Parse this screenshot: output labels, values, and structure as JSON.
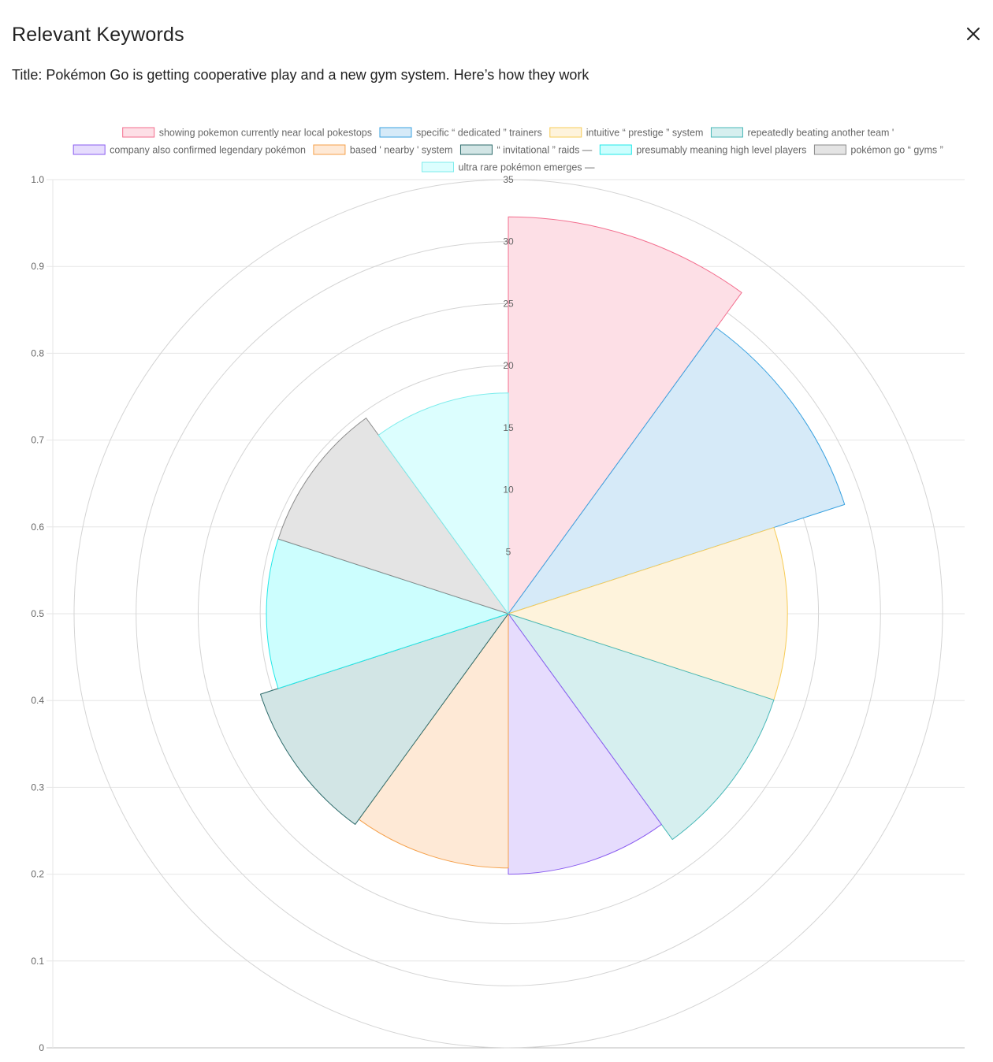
{
  "dialog": {
    "heading": "Relevant Keywords",
    "subtitle_prefix": "Title: ",
    "article_title": "Pokémon Go is getting cooperative play and a new gym system. Here’s how they work"
  },
  "icons": {
    "close": "close-icon"
  },
  "chart_data": {
    "type": "polarArea",
    "categories": [
      "showing pokemon currently near local pokestops",
      "specific “ dedicated ” trainers",
      "intuitive “ prestige ” system",
      "repeatedly beating another team '",
      "company also confirmed legendary pokémon",
      "based ' nearby ' system",
      "“ invitational ” raids —",
      "presumably meaning high level players",
      "pokémon go “ gyms ”",
      "ultra rare pokémon emerges —"
    ],
    "values": [
      32,
      28.5,
      22.5,
      22.5,
      21,
      20.5,
      21,
      19.5,
      19.5,
      17.8
    ],
    "colors": {
      "fill": [
        "#fddfe6",
        "#d6eaf8",
        "#fef3dc",
        "#d6efef",
        "#e6dcfd",
        "#fee9d6",
        "#d2e5e5",
        "#ccfefe",
        "#e4e4e4",
        "#dcfefe"
      ],
      "stroke": [
        "#f36e8e",
        "#3aa2e0",
        "#f7cc58",
        "#49b8b8",
        "#8a5cf0",
        "#f5a04a",
        "#2e6b6b",
        "#22e8e8",
        "#8a8a8a",
        "#7eecec"
      ]
    },
    "radial_axis": {
      "min": 0,
      "max": 35,
      "step": 5,
      "ticks": [
        "5",
        "10",
        "15",
        "20",
        "25",
        "30",
        "35"
      ]
    },
    "y_axis": {
      "min": 0,
      "max": 1,
      "ticks": [
        "0",
        "0.1",
        "0.2",
        "0.3",
        "0.4",
        "0.5",
        "0.6",
        "0.7",
        "0.8",
        "0.9",
        "1.0"
      ]
    },
    "legend_position": "top",
    "grid": true
  }
}
